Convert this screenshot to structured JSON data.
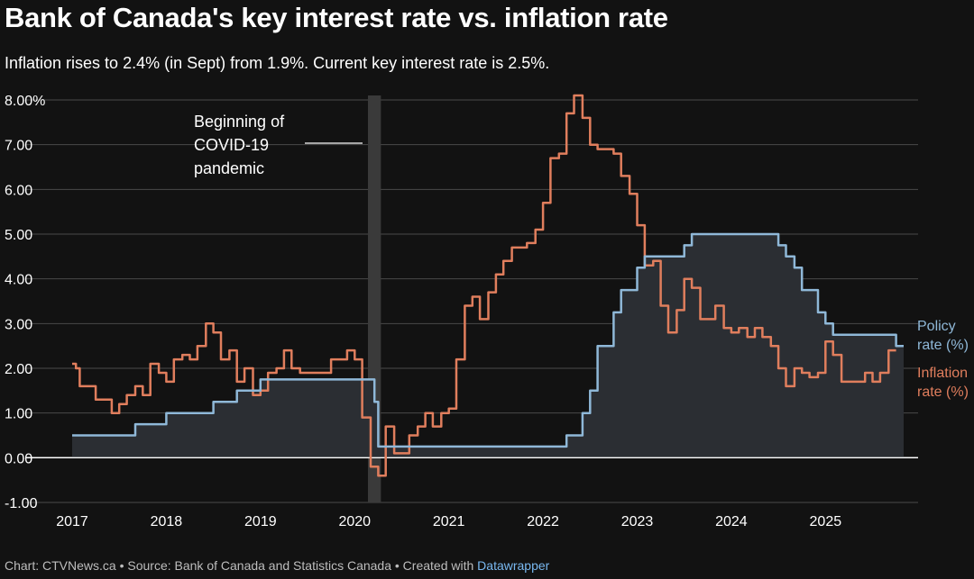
{
  "title": "Bank of Canada's key interest rate vs. inflation rate",
  "subtitle": "Inflation rises to 2.4% (in Sept) from 1.9%. Current key interest rate is 2.5%.",
  "footer": {
    "text": "Chart: CTVNews.ca • Source: Bank of Canada and Statistics Canada • Created with ",
    "link": "Datawrapper"
  },
  "colors": {
    "background": "#121212",
    "policy": "#8fb8d8",
    "inflation": "#e07e5d",
    "area": "#2b2e33",
    "grid": "#4a4a4a",
    "band": "#3a3a3a"
  },
  "chart_data": {
    "type": "line",
    "title": "Bank of Canada's key interest rate vs. inflation rate",
    "xlabel": "",
    "ylabel": "",
    "xlim": [
      2017.0,
      2025.83
    ],
    "ylim": [
      -1,
      8
    ],
    "y_ticks": [
      -1,
      0,
      1,
      2,
      3,
      4,
      5,
      6,
      7,
      8
    ],
    "y_tick_labels": [
      "-1.00",
      "0.00",
      "1.00",
      "2.00",
      "3.00",
      "4.00",
      "5.00",
      "6.00",
      "7.00",
      "8.00%"
    ],
    "x_ticks": [
      2017,
      2018,
      2019,
      2020,
      2021,
      2022,
      2023,
      2024,
      2025
    ],
    "x_tick_labels": [
      "2017",
      "2018",
      "2019",
      "2020",
      "2021",
      "2022",
      "2023",
      "2024",
      "2025"
    ],
    "grid": true,
    "annotation": {
      "text_lines": [
        "Beginning of",
        "COVID-19",
        "pandemic"
      ],
      "x_start": 2020.17,
      "x_end": 2020.25
    },
    "series": [
      {
        "name": "Policy rate (%)",
        "label_lines": [
          "Policy",
          "rate (%)"
        ],
        "step": true,
        "fill_area": true,
        "x": [
          2017.0,
          2017.5,
          2017.67,
          2017.71,
          2018.0,
          2018.04,
          2018.5,
          2018.54,
          2018.75,
          2018.79,
          2019.0,
          2020.17,
          2020.21,
          2020.25,
          2021.0,
          2022.17,
          2022.25,
          2022.33,
          2022.42,
          2022.5,
          2022.58,
          2022.67,
          2022.75,
          2022.83,
          2022.92,
          2023.0,
          2023.08,
          2023.42,
          2023.5,
          2023.58,
          2024.0,
          2024.42,
          2024.5,
          2024.58,
          2024.67,
          2024.75,
          2024.83,
          2024.92,
          2025.0,
          2025.08,
          2025.17,
          2025.75,
          2025.83
        ],
        "values": [
          0.5,
          0.5,
          0.75,
          0.75,
          1.0,
          1.0,
          1.25,
          1.25,
          1.5,
          1.5,
          1.75,
          1.75,
          1.25,
          0.25,
          0.25,
          0.25,
          0.5,
          0.5,
          1.0,
          1.5,
          2.5,
          2.5,
          3.25,
          3.75,
          3.75,
          4.25,
          4.5,
          4.5,
          4.75,
          5.0,
          5.0,
          5.0,
          4.75,
          4.5,
          4.25,
          3.75,
          3.75,
          3.25,
          3.0,
          2.75,
          2.75,
          2.5,
          2.5
        ]
      },
      {
        "name": "Inflation rate (%)",
        "label_lines": [
          "Inflation",
          "rate (%)"
        ],
        "step": true,
        "fill_area": false,
        "x": [
          2017.0,
          2017.04,
          2017.08,
          2017.17,
          2017.25,
          2017.33,
          2017.42,
          2017.5,
          2017.58,
          2017.67,
          2017.75,
          2017.83,
          2017.92,
          2018.0,
          2018.08,
          2018.17,
          2018.25,
          2018.33,
          2018.42,
          2018.5,
          2018.58,
          2018.67,
          2018.75,
          2018.83,
          2018.92,
          2019.0,
          2019.08,
          2019.17,
          2019.25,
          2019.33,
          2019.42,
          2019.5,
          2019.58,
          2019.67,
          2019.75,
          2019.83,
          2019.92,
          2020.0,
          2020.08,
          2020.17,
          2020.25,
          2020.33,
          2020.42,
          2020.5,
          2020.58,
          2020.67,
          2020.75,
          2020.83,
          2020.92,
          2021.0,
          2021.08,
          2021.17,
          2021.25,
          2021.33,
          2021.42,
          2021.5,
          2021.58,
          2021.67,
          2021.75,
          2021.83,
          2021.92,
          2022.0,
          2022.08,
          2022.17,
          2022.25,
          2022.33,
          2022.42,
          2022.5,
          2022.58,
          2022.67,
          2022.75,
          2022.83,
          2022.92,
          2023.0,
          2023.08,
          2023.17,
          2023.25,
          2023.33,
          2023.42,
          2023.5,
          2023.58,
          2023.67,
          2023.75,
          2023.83,
          2023.92,
          2024.0,
          2024.08,
          2024.17,
          2024.25,
          2024.33,
          2024.42,
          2024.5,
          2024.58,
          2024.67,
          2024.75,
          2024.83,
          2024.92,
          2025.0,
          2025.08,
          2025.17,
          2025.25,
          2025.33,
          2025.42,
          2025.5,
          2025.58,
          2025.67,
          2025.75
        ],
        "values": [
          2.1,
          2.0,
          1.6,
          1.6,
          1.3,
          1.3,
          1.0,
          1.2,
          1.4,
          1.6,
          1.4,
          2.1,
          1.9,
          1.7,
          2.2,
          2.3,
          2.2,
          2.5,
          3.0,
          2.8,
          2.2,
          2.4,
          1.7,
          2.0,
          1.4,
          1.5,
          1.9,
          2.0,
          2.4,
          2.0,
          1.9,
          1.9,
          1.9,
          1.9,
          2.2,
          2.2,
          2.4,
          2.2,
          0.9,
          -0.2,
          -0.4,
          0.7,
          0.1,
          0.1,
          0.5,
          0.7,
          1.0,
          0.7,
          1.0,
          1.1,
          2.2,
          3.4,
          3.6,
          3.1,
          3.7,
          4.1,
          4.4,
          4.7,
          4.7,
          4.8,
          5.1,
          5.7,
          6.7,
          6.8,
          7.7,
          8.1,
          7.6,
          7.0,
          6.9,
          6.9,
          6.8,
          6.3,
          5.9,
          5.2,
          4.3,
          4.4,
          3.4,
          2.8,
          3.3,
          4.0,
          3.8,
          3.1,
          3.1,
          3.4,
          2.9,
          2.8,
          2.9,
          2.7,
          2.9,
          2.7,
          2.5,
          2.0,
          1.6,
          2.0,
          1.9,
          1.8,
          1.9,
          2.6,
          2.3,
          1.7,
          1.7,
          1.7,
          1.9,
          1.7,
          1.9,
          2.4,
          2.4
        ]
      }
    ]
  }
}
